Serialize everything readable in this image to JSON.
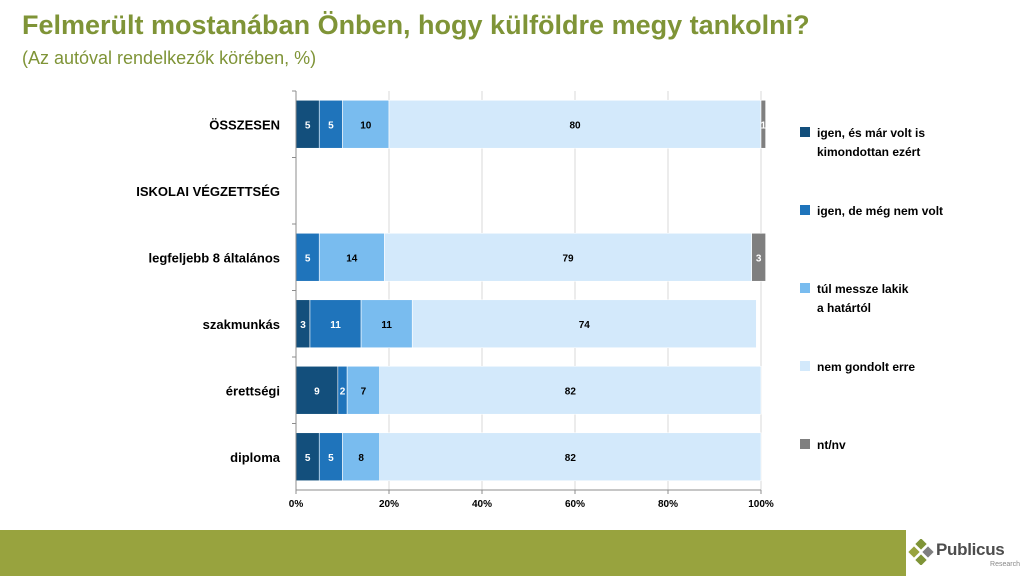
{
  "header": {
    "title": "Felmerült mostanában Önben, hogy külföldre megy tankolni?",
    "subtitle": "(Az autóval rendelkezők körében, %)"
  },
  "chart_data": {
    "type": "bar",
    "orientation": "horizontal",
    "stacked": true,
    "title": "Felmerült mostanában Önben, hogy külföldre megy tankolni?",
    "subtitle": "(Az autóval rendelkezők körében, %)",
    "categories": [
      "ÖSSZESEN",
      "ISKOLAI VÉGZETTSÉG",
      "legfeljebb 8 általános",
      "szakmunkás",
      "érettségi",
      "diploma"
    ],
    "xlim": [
      0,
      100
    ],
    "x_ticks": [
      "0%",
      "20%",
      "40%",
      "60%",
      "80%",
      "100%"
    ],
    "legend_position": "right",
    "series": [
      {
        "name": "igen, és már volt is kimondottan ezért",
        "color": "#134f7c",
        "label_color": "#ffffff",
        "values": [
          5,
          null,
          0,
          3,
          9,
          5
        ]
      },
      {
        "name": "igen, de még nem volt",
        "color": "#1f74bb",
        "label_color": "#ffffff",
        "values": [
          5,
          null,
          5,
          11,
          2,
          5
        ]
      },
      {
        "name": "túl messze lakik a határtól",
        "color": "#79bcef",
        "label_color": "#000000",
        "values": [
          10,
          null,
          14,
          11,
          7,
          8
        ]
      },
      {
        "name": "nem gondolt erre",
        "color": "#d3e9fb",
        "label_color": "#000000",
        "values": [
          80,
          null,
          79,
          74,
          82,
          82
        ]
      },
      {
        "name": "nt/nv",
        "color": "#7f7f7f",
        "label_color": "#ffffff",
        "values": [
          1,
          null,
          3,
          0,
          0,
          0
        ]
      }
    ]
  },
  "branding": {
    "logo_name": "Publicus",
    "logo_sub": "Research",
    "accent_color": "#98a33e"
  }
}
